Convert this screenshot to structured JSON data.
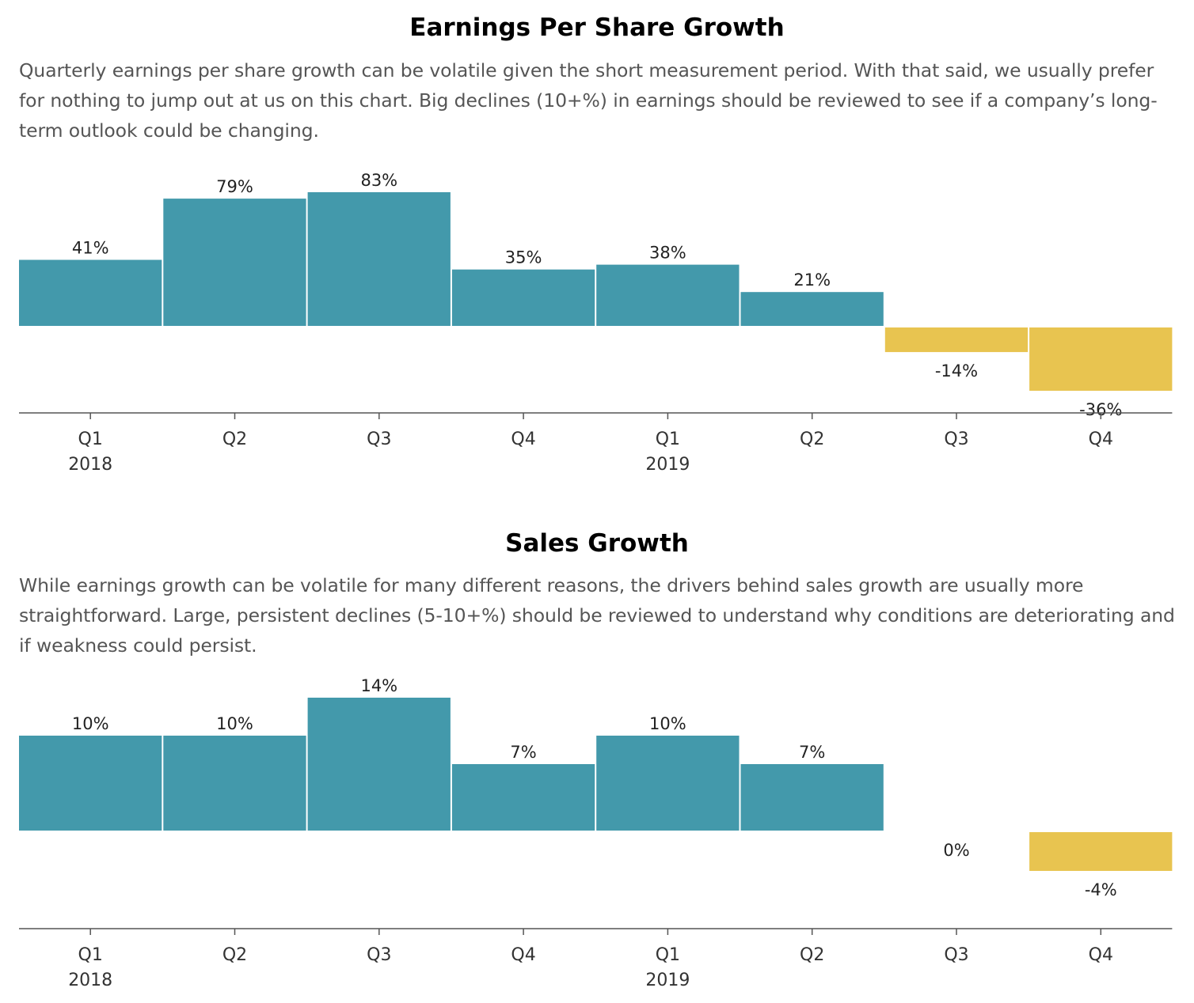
{
  "chart_data": [
    {
      "type": "bar",
      "title": "Earnings Per Share Growth",
      "description": "Quarterly earnings per share growth can be volatile given the short measurement period. With that said, we usually prefer for nothing to jump out at us on this chart. Big declines (10+%) in earnings should be reviewed to see if a company’s long-term outlook could be changing.",
      "categories": [
        "Q1",
        "Q2",
        "Q3",
        "Q4",
        "Q1",
        "Q2",
        "Q3",
        "Q4"
      ],
      "year_labels": [
        "2018",
        "",
        "",
        "",
        "2019",
        "",
        "",
        ""
      ],
      "values": [
        41,
        79,
        83,
        35,
        38,
        21,
        -14,
        -36
      ],
      "data_labels": [
        "41%",
        "79%",
        "83%",
        "35%",
        "38%",
        "21%",
        "-14%",
        "-36%"
      ],
      "ylim": [
        -36,
        83
      ],
      "grid": false,
      "colors": {
        "positive": "#4399ab",
        "negative": "#e8c450",
        "axis": "#555555"
      }
    },
    {
      "type": "bar",
      "title": "Sales Growth",
      "description": "While earnings growth can be volatile for many different reasons, the drivers behind sales growth are usually more straightforward. Large, persistent declines (5-10+%) should be reviewed to understand why conditions are deteriorating and if weakness could persist.",
      "categories": [
        "Q1",
        "Q2",
        "Q3",
        "Q4",
        "Q1",
        "Q2",
        "Q3",
        "Q4"
      ],
      "year_labels": [
        "2018",
        "",
        "",
        "",
        "2019",
        "",
        "",
        ""
      ],
      "values": [
        10,
        10,
        14,
        7,
        10,
        7,
        0,
        -4
      ],
      "data_labels": [
        "10%",
        "10%",
        "14%",
        "7%",
        "10%",
        "7%",
        "0%",
        "-4%"
      ],
      "ylim": [
        -4,
        14
      ],
      "grid": false,
      "colors": {
        "positive": "#4399ab",
        "negative": "#e8c450",
        "axis": "#555555"
      }
    }
  ]
}
